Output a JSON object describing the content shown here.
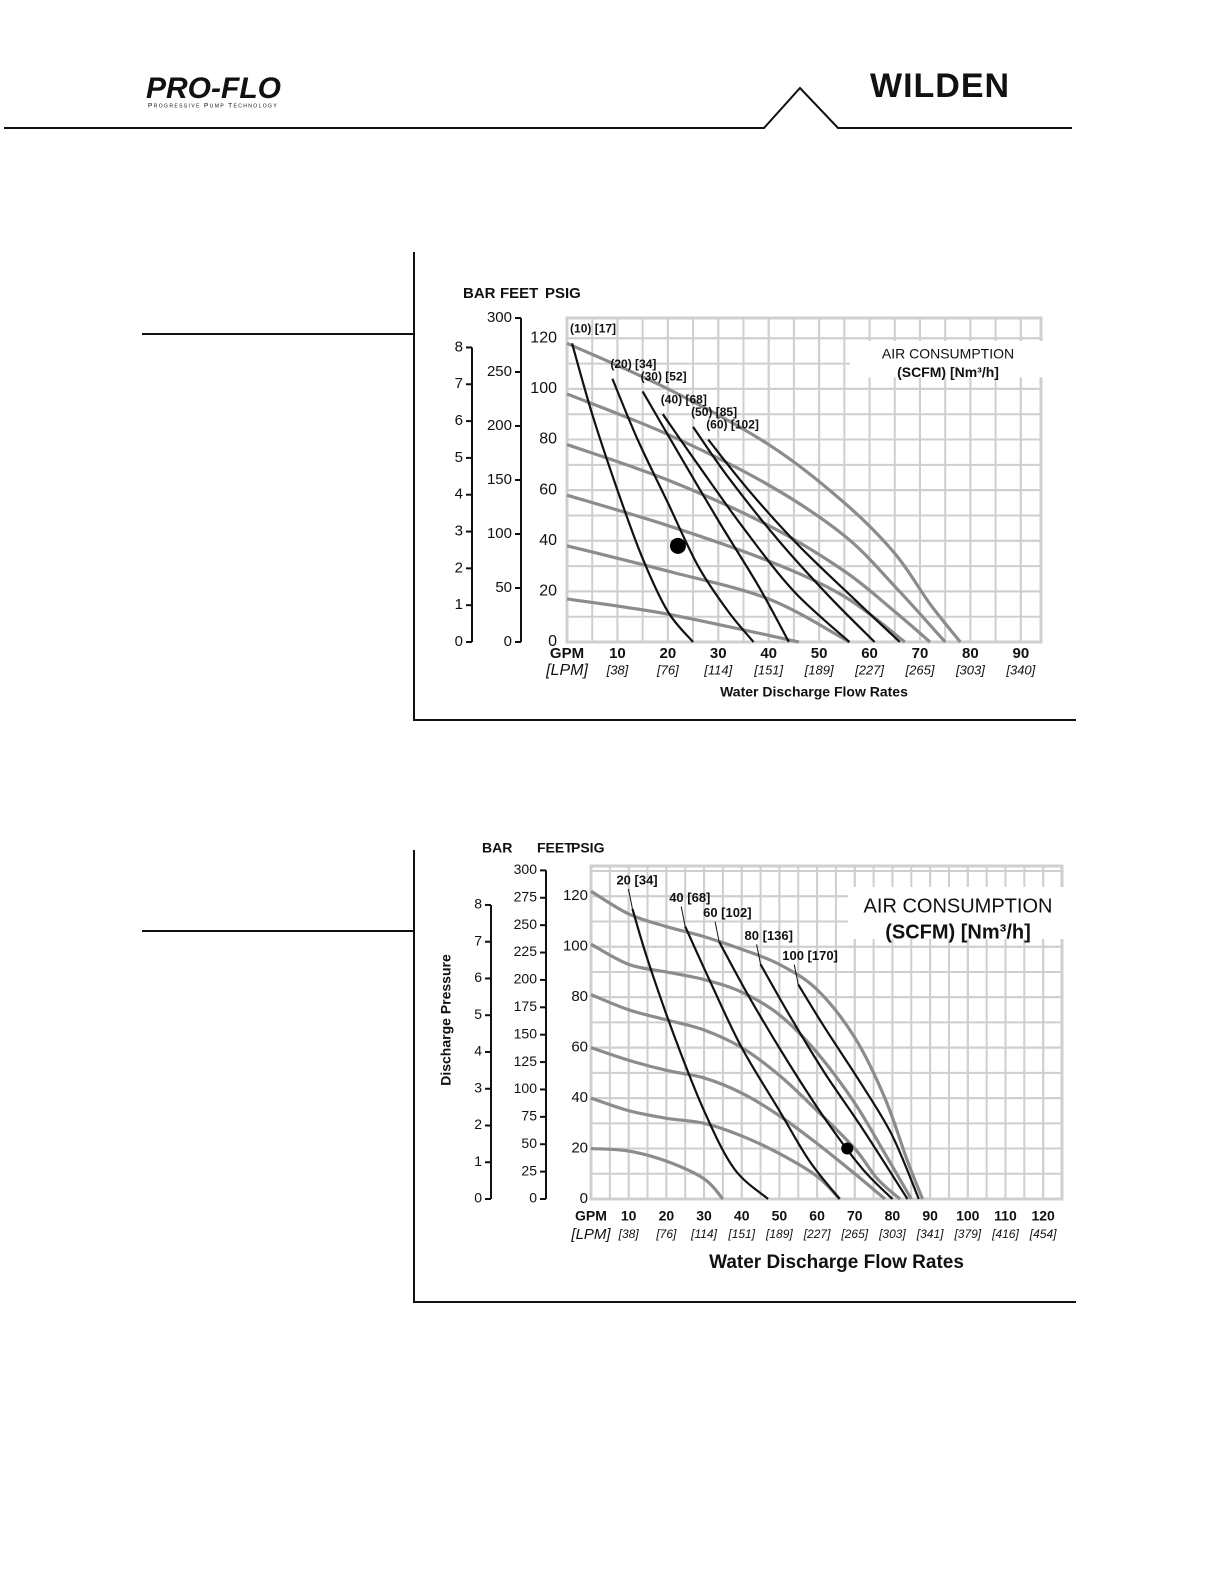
{
  "header": {
    "brand_left": "PRO-FLO",
    "tagline": "Progressive Pump Technology",
    "brand_right": "WILDEN"
  },
  "chart_data": [
    {
      "type": "line",
      "grid": true,
      "grid_step": {
        "x": 5,
        "y": 10
      },
      "xlim": [
        0,
        94
      ],
      "ylim": [
        0,
        128
      ],
      "xticks": [
        {
          "value": 0,
          "label": "GPM"
        },
        10,
        20,
        30,
        40,
        50,
        60,
        70,
        80,
        90
      ],
      "lpm_labels": [
        "[LPM]",
        "[38]",
        "[76]",
        "[114]",
        "[151]",
        "[189]",
        "[227]",
        "[265]",
        "[303]",
        "[340]"
      ],
      "yticks": [
        0,
        20,
        40,
        60,
        80,
        100,
        120
      ],
      "ylabel": "PSIG",
      "axes": [
        {
          "label": "BAR",
          "lim": [
            0,
            8.8
          ],
          "ticks": [
            0,
            1,
            2,
            3,
            4,
            5,
            6,
            7,
            8
          ]
        },
        {
          "label": "FEET",
          "lim": [
            0,
            300
          ],
          "ticks": [
            0,
            50,
            100,
            150,
            200,
            250,
            300
          ]
        }
      ],
      "x_title": "Water Discharge Flow Rates",
      "legend_title": "AIR CONSUMPTION",
      "legend_units": "(SCFM) [Nm³/h]",
      "series": [
        {
          "color": "#8c8c8c",
          "x": [
            0,
            20,
            40,
            55,
            65,
            72,
            78
          ],
          "values": [
            118,
            100,
            78,
            55,
            35,
            15,
            0
          ]
        },
        {
          "color": "#8c8c8c",
          "x": [
            0,
            20,
            40,
            55,
            65,
            75
          ],
          "values": [
            98,
            82,
            62,
            42,
            22,
            0
          ]
        },
        {
          "color": "#8c8c8c",
          "x": [
            0,
            20,
            40,
            55,
            65,
            72
          ],
          "values": [
            78,
            64,
            46,
            28,
            12,
            0
          ]
        },
        {
          "color": "#8c8c8c",
          "x": [
            0,
            20,
            40,
            55,
            67
          ],
          "values": [
            58,
            46,
            32,
            18,
            0
          ]
        },
        {
          "color": "#8c8c8c",
          "x": [
            0,
            20,
            40,
            56
          ],
          "values": [
            38,
            28,
            17,
            0
          ]
        },
        {
          "color": "#8c8c8c",
          "x": [
            0,
            20,
            46
          ],
          "values": [
            17,
            11,
            0
          ]
        },
        {
          "name": "(10) [17]",
          "color": "#111111",
          "x": [
            1,
            5,
            10,
            15,
            20,
            25
          ],
          "values": [
            118,
            90,
            60,
            33,
            12,
            0
          ]
        },
        {
          "name": "(20) [34]",
          "color": "#111111",
          "x": [
            9,
            14,
            20,
            26,
            32,
            37
          ],
          "values": [
            104,
            80,
            55,
            30,
            12,
            0
          ]
        },
        {
          "name": "(30) [52]",
          "color": "#111111",
          "x": [
            15,
            22,
            30,
            38,
            44
          ],
          "values": [
            99,
            75,
            48,
            22,
            0
          ]
        },
        {
          "name": "(40) [68]",
          "color": "#111111",
          "x": [
            19,
            26,
            35,
            45,
            56
          ],
          "values": [
            90,
            70,
            45,
            20,
            0
          ]
        },
        {
          "name": "(50) [85]",
          "color": "#111111",
          "x": [
            25,
            32,
            42,
            52,
            61
          ],
          "values": [
            85,
            65,
            40,
            18,
            0
          ]
        },
        {
          "name": "(60) [102]",
          "color": "#111111",
          "x": [
            28,
            36,
            46,
            58,
            66
          ],
          "values": [
            80,
            60,
            38,
            15,
            0
          ]
        }
      ],
      "point": {
        "x": 22,
        "y": 38
      }
    },
    {
      "type": "line",
      "grid": true,
      "grid_step": {
        "x": 5,
        "y": 10
      },
      "xlim": [
        0,
        125
      ],
      "ylim": [
        0,
        132
      ],
      "xticks": [
        {
          "value": 0,
          "label": "GPM"
        },
        10,
        20,
        30,
        40,
        50,
        60,
        70,
        80,
        90,
        100,
        110,
        120
      ],
      "lpm_labels": [
        "[LPM]",
        "[38]",
        "[76]",
        "[114]",
        "[151]",
        "[189]",
        "[227]",
        "[265]",
        "[303]",
        "[341]",
        "[379]",
        "[416]",
        "[454]"
      ],
      "yticks": [
        0,
        20,
        40,
        60,
        80,
        100,
        120
      ],
      "ylabel": "PSIG",
      "axes": [
        {
          "label": "BAR",
          "lim": [
            0,
            9.06
          ],
          "ticks": [
            0,
            1,
            2,
            3,
            4,
            5,
            6,
            7,
            8
          ]
        },
        {
          "label": "FEET",
          "lim": [
            0,
            304
          ],
          "ticks": [
            0,
            25,
            50,
            75,
            100,
            125,
            150,
            175,
            200,
            225,
            250,
            275,
            300
          ]
        }
      ],
      "x_title": "Water Discharge Flow Rates",
      "y_title": "Discharge Pressure",
      "legend_title": "AIR CONSUMPTION",
      "legend_units": "(SCFM) [Nm³/h]",
      "series": [
        {
          "color": "#8c8c8c",
          "x": [
            0,
            10,
            20,
            30,
            40,
            50,
            60,
            70,
            78,
            84,
            88
          ],
          "values": [
            122,
            113,
            108,
            104,
            99,
            93,
            83,
            64,
            40,
            15,
            0
          ]
        },
        {
          "color": "#8c8c8c",
          "x": [
            0,
            10,
            20,
            30,
            40,
            50,
            60,
            70,
            78,
            85
          ],
          "values": [
            101,
            93,
            90,
            87,
            82,
            73,
            58,
            38,
            18,
            0
          ]
        },
        {
          "color": "#8c8c8c",
          "x": [
            0,
            10,
            20,
            30,
            40,
            50,
            60,
            70,
            76,
            82
          ],
          "values": [
            81,
            75,
            71,
            67,
            60,
            49,
            35,
            20,
            8,
            0
          ]
        },
        {
          "color": "#8c8c8c",
          "x": [
            0,
            10,
            20,
            30,
            40,
            50,
            60,
            70,
            78
          ],
          "values": [
            60,
            55,
            51,
            48,
            42,
            33,
            22,
            10,
            0
          ]
        },
        {
          "color": "#8c8c8c",
          "x": [
            0,
            10,
            20,
            30,
            40,
            50,
            60,
            66
          ],
          "values": [
            40,
            35,
            32,
            30,
            25,
            18,
            9,
            0
          ]
        },
        {
          "color": "#8c8c8c",
          "x": [
            0,
            10,
            20,
            30,
            35
          ],
          "values": [
            20,
            19,
            15,
            8,
            0
          ]
        },
        {
          "name": "20 [34]",
          "color": "#111111",
          "x": [
            11,
            15,
            22,
            30,
            38,
            47
          ],
          "values": [
            115,
            95,
            65,
            35,
            12,
            0
          ]
        },
        {
          "name": "40 [68]",
          "color": "#111111",
          "x": [
            25,
            32,
            40,
            50,
            58,
            66
          ],
          "values": [
            108,
            85,
            60,
            35,
            15,
            0
          ]
        },
        {
          "name": "60 [102]",
          "color": "#111111",
          "x": [
            34,
            42,
            52,
            62,
            72,
            80
          ],
          "values": [
            102,
            80,
            55,
            32,
            12,
            0
          ]
        },
        {
          "name": "80 [136]",
          "color": "#111111",
          "x": [
            45,
            53,
            62,
            72,
            84
          ],
          "values": [
            93,
            72,
            50,
            28,
            0
          ]
        },
        {
          "name": "100 [170]",
          "color": "#111111",
          "x": [
            55,
            62,
            72,
            80,
            87
          ],
          "values": [
            85,
            68,
            45,
            25,
            0
          ]
        }
      ],
      "point": {
        "x": 68,
        "y": 20
      }
    }
  ]
}
